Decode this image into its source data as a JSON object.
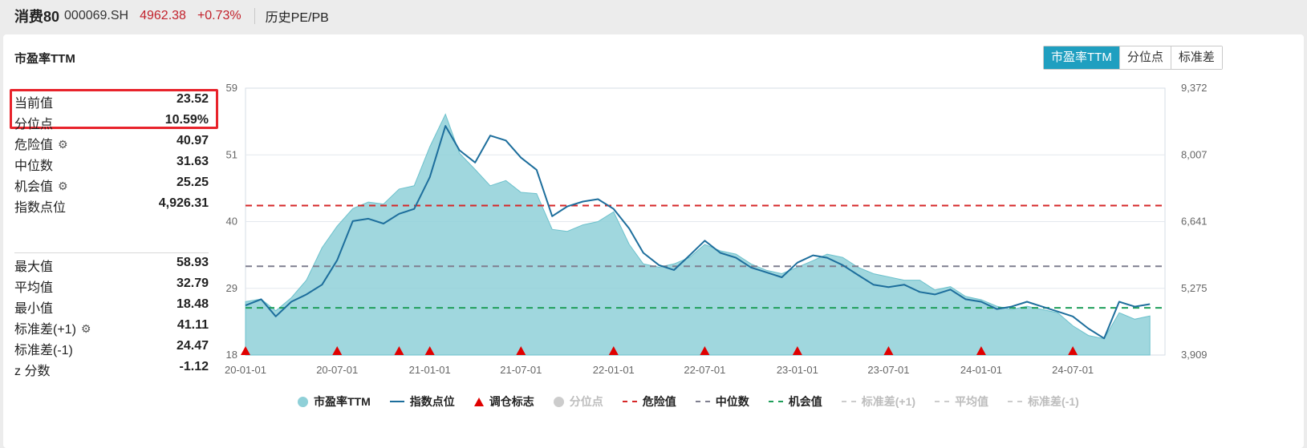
{
  "header": {
    "name": "消费80",
    "code": "000069.SH",
    "price": "4962.38",
    "change": "+0.73%",
    "history_label": "历史PE/PB"
  },
  "card": {
    "title": "市盈率TTM",
    "tabs": [
      {
        "label": "市盈率TTM",
        "active": true
      },
      {
        "label": "分位点",
        "active": false
      },
      {
        "label": "标准差",
        "active": false
      }
    ]
  },
  "stats": {
    "current_label": "当前值",
    "current_value": "23.52",
    "percentile_label": "分位点",
    "percentile_value": "10.59%",
    "danger_label": "危险值",
    "danger_value": "40.97",
    "median_label": "中位数",
    "median_value": "31.63",
    "opportunity_label": "机会值",
    "opportunity_value": "25.25",
    "index_label": "指数点位",
    "index_value": "4,926.31",
    "max_label": "最大值",
    "max_value": "58.93",
    "mean_label": "平均值",
    "mean_value": "32.79",
    "min_label": "最小值",
    "min_value": "18.48",
    "std_plus_label": "标准差(+1)",
    "std_plus_value": "41.11",
    "std_minus_label": "标准差(-1)",
    "std_minus_value": "24.47",
    "z_label": "z 分数",
    "z_value": "-1.12"
  },
  "chart_data": {
    "type": "area",
    "title": "",
    "xlabel": "",
    "ylabel": "",
    "x_ticks": [
      "20-01-01",
      "20-07-01",
      "21-01-01",
      "21-07-01",
      "22-01-01",
      "22-07-01",
      "23-01-01",
      "23-07-01",
      "24-01-01",
      "24-07-01"
    ],
    "x_range": [
      "2020-01-01",
      "2024-12-31"
    ],
    "y_left_ticks": [
      "59",
      "51",
      "40",
      "29",
      "18"
    ],
    "y_left_range": [
      18,
      59
    ],
    "y_right_ticks": [
      "9,372",
      "8,007",
      "6,641",
      "5,275",
      "3,909"
    ],
    "y_right_range": [
      3909,
      9372
    ],
    "reference_lines": [
      {
        "name": "危险值",
        "value": 40.97,
        "color": "#d62728"
      },
      {
        "name": "中位数",
        "value": 31.63,
        "color": "#7f7f8f"
      },
      {
        "name": "机会值",
        "value": 25.25,
        "color": "#1f9e5a"
      }
    ],
    "series": [
      {
        "name": "市盈率TTM",
        "axis": "left",
        "color": "#8fd0d8",
        "x": [
          "2020-01-01",
          "2020-02-01",
          "2020-03-01",
          "2020-04-01",
          "2020-05-01",
          "2020-06-01",
          "2020-07-01",
          "2020-08-01",
          "2020-09-01",
          "2020-10-01",
          "2020-11-01",
          "2020-12-01",
          "2021-01-01",
          "2021-02-01",
          "2021-03-01",
          "2021-04-01",
          "2021-05-01",
          "2021-06-01",
          "2021-07-01",
          "2021-08-01",
          "2021-09-01",
          "2021-10-01",
          "2021-11-01",
          "2021-12-01",
          "2022-01-01",
          "2022-02-01",
          "2022-03-01",
          "2022-04-01",
          "2022-05-01",
          "2022-06-01",
          "2022-07-01",
          "2022-08-01",
          "2022-09-01",
          "2022-10-01",
          "2022-11-01",
          "2022-12-01",
          "2023-01-01",
          "2023-02-01",
          "2023-03-01",
          "2023-04-01",
          "2023-05-01",
          "2023-06-01",
          "2023-07-01",
          "2023-08-01",
          "2023-09-01",
          "2023-10-01",
          "2023-11-01",
          "2023-12-01",
          "2024-01-01",
          "2024-02-01",
          "2024-03-01",
          "2024-04-01",
          "2024-05-01",
          "2024-06-01",
          "2024-07-01",
          "2024-08-01",
          "2024-09-01",
          "2024-10-01",
          "2024-11-01",
          "2024-12-01"
        ],
        "values": [
          26.2,
          26.6,
          24.8,
          26.8,
          29.5,
          34.5,
          37.8,
          40.5,
          41.5,
          41.2,
          43.5,
          44.0,
          50.0,
          55.0,
          49.0,
          46.5,
          44.0,
          44.8,
          43.0,
          42.8,
          37.3,
          37.0,
          38.0,
          38.5,
          40.0,
          35.0,
          32.0,
          31.5,
          32.0,
          33.0,
          35.0,
          34.0,
          33.5,
          32.0,
          31.0,
          30.5,
          31.5,
          32.5,
          33.5,
          33.0,
          31.5,
          30.5,
          30.0,
          29.5,
          29.5,
          28.0,
          28.5,
          27.0,
          26.5,
          25.5,
          25.0,
          25.5,
          25.0,
          24.5,
          22.5,
          21.0,
          20.5,
          24.5,
          23.5,
          24.0
        ]
      },
      {
        "name": "指数点位",
        "axis": "right",
        "color": "#1d6e9c",
        "x": [
          "2020-01-01",
          "2020-02-01",
          "2020-03-01",
          "2020-04-01",
          "2020-05-01",
          "2020-06-01",
          "2020-07-01",
          "2020-08-01",
          "2020-09-01",
          "2020-10-01",
          "2020-11-01",
          "2020-12-01",
          "2021-01-01",
          "2021-02-01",
          "2021-03-01",
          "2021-04-01",
          "2021-05-01",
          "2021-06-01",
          "2021-07-01",
          "2021-08-01",
          "2021-09-01",
          "2021-10-01",
          "2021-11-01",
          "2021-12-01",
          "2022-01-01",
          "2022-02-01",
          "2022-03-01",
          "2022-04-01",
          "2022-05-01",
          "2022-06-01",
          "2022-07-01",
          "2022-08-01",
          "2022-09-01",
          "2022-10-01",
          "2022-11-01",
          "2022-12-01",
          "2023-01-01",
          "2023-02-01",
          "2023-03-01",
          "2023-04-01",
          "2023-05-01",
          "2023-06-01",
          "2023-07-01",
          "2023-08-01",
          "2023-09-01",
          "2023-10-01",
          "2023-11-01",
          "2023-12-01",
          "2024-01-01",
          "2024-02-01",
          "2024-03-01",
          "2024-04-01",
          "2024-05-01",
          "2024-06-01",
          "2024-07-01",
          "2024-08-01",
          "2024-09-01",
          "2024-10-01",
          "2024-11-01",
          "2024-12-01"
        ],
        "values": [
          4925,
          5050,
          4700,
          5000,
          5150,
          5350,
          5850,
          6650,
          6700,
          6600,
          6800,
          6900,
          7550,
          8600,
          8100,
          7850,
          8400,
          8300,
          7950,
          7700,
          6750,
          6950,
          7050,
          7100,
          6900,
          6500,
          6000,
          5750,
          5650,
          5950,
          6250,
          6000,
          5900,
          5700,
          5600,
          5500,
          5800,
          5950,
          5900,
          5750,
          5550,
          5350,
          5300,
          5350,
          5200,
          5150,
          5250,
          5050,
          5000,
          4850,
          4900,
          5000,
          4900,
          4800,
          4700,
          4450,
          4250,
          5000,
          4900,
          4950
        ]
      }
    ],
    "rebalance_markers": [
      "2020-01-01",
      "2020-07-01",
      "2020-11-01",
      "2021-01-01",
      "2021-07-01",
      "2022-01-01",
      "2022-07-01",
      "2023-01-01",
      "2023-07-01",
      "2024-01-01",
      "2024-07-01"
    ],
    "legend": {
      "placement": "bottom",
      "items": [
        {
          "label": "市盈率TTM",
          "style": "dot",
          "color": "#8fd0d8",
          "active": true
        },
        {
          "label": "指数点位",
          "style": "line",
          "color": "#1d6e9c",
          "active": true
        },
        {
          "label": "调仓标志",
          "style": "triangle",
          "color": "#e00000",
          "active": true
        },
        {
          "label": "分位点",
          "style": "dot",
          "color": "#cccccc",
          "active": false
        },
        {
          "label": "危险值",
          "style": "dash",
          "color": "#d62728",
          "active": true
        },
        {
          "label": "中位数",
          "style": "dash",
          "color": "#7f7f8f",
          "active": true
        },
        {
          "label": "机会值",
          "style": "dash",
          "color": "#1f9e5a",
          "active": true
        },
        {
          "label": "标准差(+1)",
          "style": "dash",
          "color": "#cccccc",
          "active": false
        },
        {
          "label": "平均值",
          "style": "dash",
          "color": "#cccccc",
          "active": false
        },
        {
          "label": "标准差(-1)",
          "style": "dash",
          "color": "#cccccc",
          "active": false
        }
      ]
    }
  }
}
